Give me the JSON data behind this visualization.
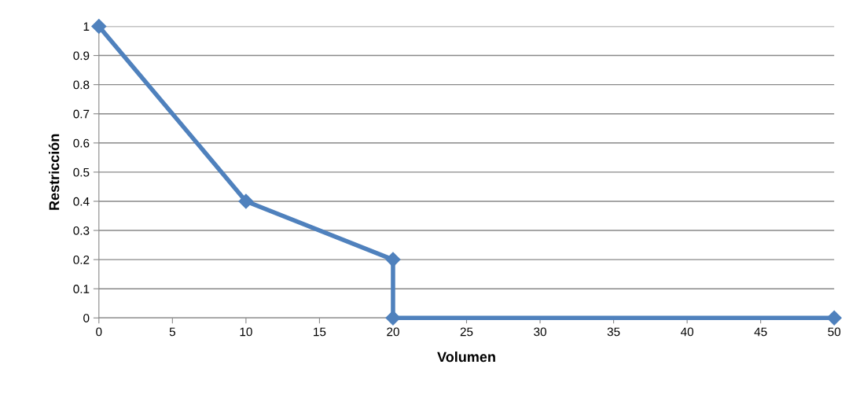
{
  "chart_data": {
    "type": "line",
    "xlabel": "Volumen",
    "ylabel": "Restricción",
    "series": [
      {
        "color": "#4f81bd",
        "x": [
          0,
          10,
          20,
          20,
          50
        ],
        "values": [
          1,
          0.4,
          0.2,
          0,
          0
        ]
      }
    ],
    "xlim": [
      0,
      50
    ],
    "xticks": [
      0,
      5,
      10,
      15,
      20,
      25,
      30,
      35,
      40,
      45,
      50
    ],
    "ylim": [
      0,
      1
    ],
    "yticks": [
      0,
      0.1,
      0.2,
      0.3,
      0.4,
      0.5,
      0.6,
      0.7,
      0.8,
      0.9,
      1
    ],
    "grid": "y",
    "marker": "diamond",
    "line_style": "solid"
  }
}
